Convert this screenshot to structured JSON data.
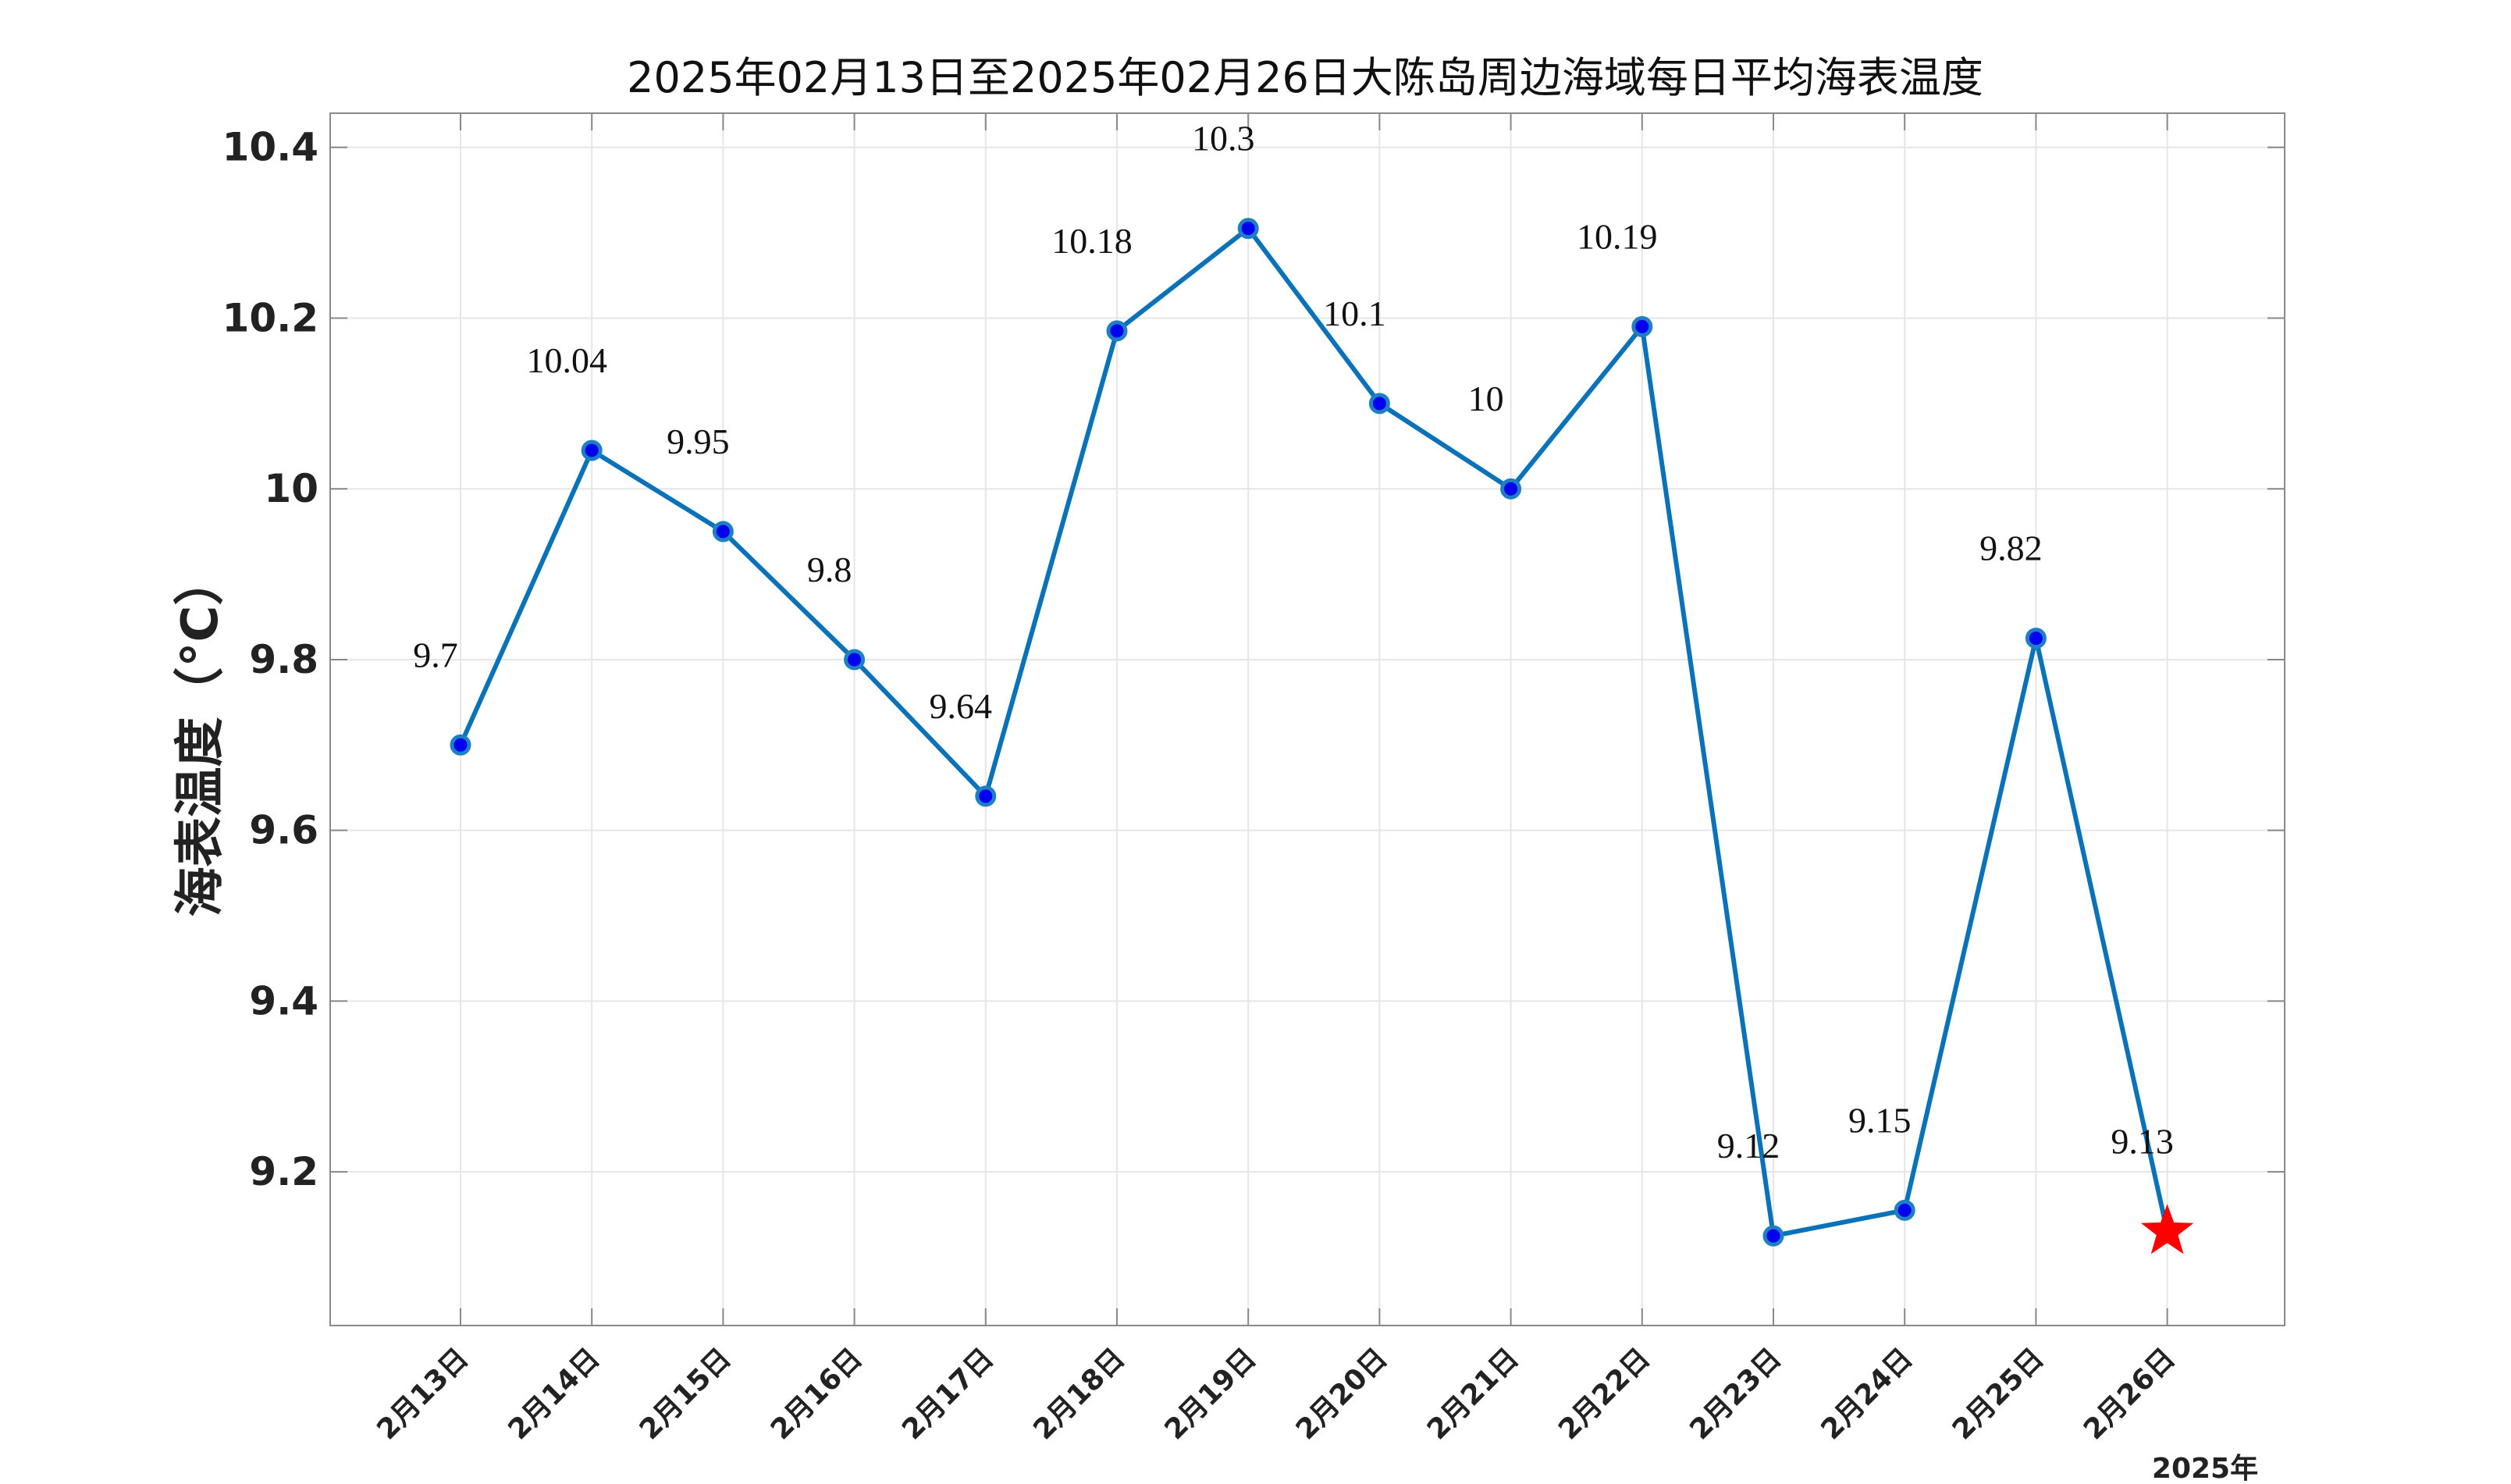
{
  "chart_data": {
    "type": "line",
    "title": "2025年02月13日至2025年02月26日大陈岛周边海域每日平均海表温度",
    "ylabel": "海表温度（°C）",
    "xlabel": "",
    "year_label": "2025年",
    "categories": [
      "2月13日",
      "2月14日",
      "2月15日",
      "2月16日",
      "2月17日",
      "2月18日",
      "2月19日",
      "2月20日",
      "2月21日",
      "2月22日",
      "2月23日",
      "2月24日",
      "2月25日",
      "2月26日"
    ],
    "values": [
      9.7,
      10.045,
      9.95,
      9.8,
      9.64,
      10.185,
      10.305,
      10.1,
      10.0,
      10.19,
      9.125,
      9.155,
      9.825,
      9.13
    ],
    "data_labels": [
      "9.7",
      "10.04",
      "9.95",
      "9.8",
      "9.64",
      "10.18",
      "10.3",
      "10.1",
      "10",
      "10.19",
      "9.12",
      "9.15",
      "9.82",
      "9.13"
    ],
    "yticks": [
      9.2,
      9.4,
      9.6,
      9.8,
      10,
      10.2,
      10.4
    ],
    "ytick_labels": [
      "9.2",
      "9.4",
      "9.6",
      "9.8",
      "10",
      "10.2",
      "10.4"
    ],
    "ylim": [
      9.02,
      10.44
    ],
    "grid": true,
    "last_point_marker": "red-star",
    "colors": {
      "line": "#0a72b8",
      "marker_fill": "#0000ee",
      "marker_edge": "#1e7fc4",
      "star": "#ff0000",
      "grid": "#e6e6e6",
      "axis": "#888888"
    }
  }
}
